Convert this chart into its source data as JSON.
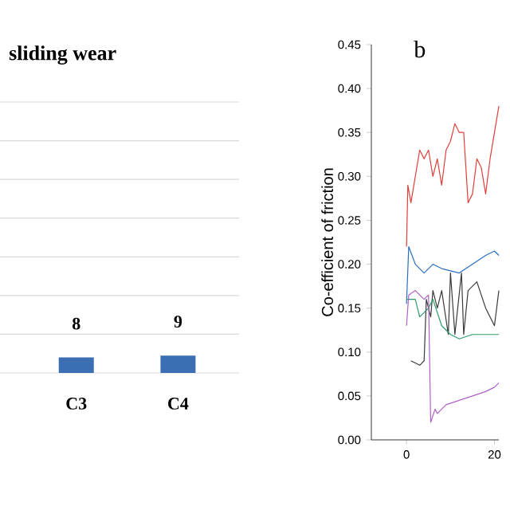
{
  "chart_data": [
    {
      "type": "bar",
      "title": "sliding wear",
      "categories": [
        "C3",
        "C4"
      ],
      "values": [
        8,
        9
      ],
      "color": "#3c6eb4",
      "data_labels": true,
      "ylim": [
        0,
        140
      ],
      "yticks": [
        {
          "value": 0,
          "label": null
        },
        {
          "value": 20,
          "label": null
        },
        {
          "value": 40,
          "label": null
        },
        {
          "value": 60,
          "label": null
        },
        {
          "value": 80,
          "label": null
        },
        {
          "value": 100,
          "label": null
        },
        {
          "value": 120,
          "label": null
        },
        {
          "value": 140,
          "label": null
        }
      ],
      "grid": "y",
      "tick_labels": "x"
    },
    {
      "type": "line",
      "title": "b",
      "ylabel": "Co-efficient of friction",
      "xlim": [
        -8,
        21
      ],
      "xticks": [
        0,
        20
      ],
      "ylim": [
        0,
        0.45
      ],
      "yticks": [
        {
          "value": 0,
          "label": "0.00"
        },
        {
          "value": 0.05,
          "label": "0.05"
        },
        {
          "value": 0.1,
          "label": "0.10"
        },
        {
          "value": 0.15,
          "label": "0.15"
        },
        {
          "value": 0.2,
          "label": "0.20"
        },
        {
          "value": 0.25,
          "label": "0.25"
        },
        {
          "value": 0.3,
          "label": "0.30"
        },
        {
          "value": 0.35,
          "label": "0.35"
        },
        {
          "value": 0.4,
          "label": "0.40"
        },
        {
          "value": 0.45,
          "label": "0.45"
        }
      ],
      "grid": false,
      "marker": "none",
      "line_style": "solid",
      "series": [
        {
          "color": "#e0403a",
          "x": [
            0,
            0.3,
            1,
            2,
            3,
            4,
            5,
            6,
            7,
            8,
            9,
            10,
            11,
            12,
            13,
            14,
            15,
            16,
            17,
            18,
            19,
            20,
            21
          ],
          "values": [
            0.22,
            0.29,
            0.27,
            0.3,
            0.33,
            0.32,
            0.33,
            0.3,
            0.32,
            0.29,
            0.33,
            0.34,
            0.36,
            0.35,
            0.35,
            0.27,
            0.28,
            0.32,
            0.31,
            0.28,
            0.32,
            0.35,
            0.38
          ]
        },
        {
          "color": "#2a6fbf",
          "x": [
            0,
            0.5,
            2,
            4,
            6,
            8,
            12,
            15,
            18,
            20,
            21
          ],
          "values": [
            0.155,
            0.22,
            0.2,
            0.19,
            0.2,
            0.195,
            0.19,
            0.2,
            0.21,
            0.215,
            0.21
          ]
        },
        {
          "color": "#3a3a3a",
          "x": [
            1,
            3,
            4,
            4.5,
            5.5,
            6,
            7,
            8,
            9.5,
            10,
            11,
            12.5,
            13,
            14,
            16,
            18,
            20,
            21
          ],
          "values": [
            0.09,
            0.085,
            0.09,
            0.16,
            0.14,
            0.17,
            0.15,
            0.17,
            0.12,
            0.19,
            0.12,
            0.19,
            0.12,
            0.17,
            0.18,
            0.15,
            0.13,
            0.17
          ]
        },
        {
          "color": "#2e9a6a",
          "x": [
            0,
            2,
            3,
            5,
            6,
            8,
            10,
            12,
            15,
            18,
            21
          ],
          "values": [
            0.16,
            0.16,
            0.14,
            0.15,
            0.16,
            0.13,
            0.12,
            0.115,
            0.12,
            0.12,
            0.12
          ]
        },
        {
          "color": "#b060c8",
          "x": [
            0,
            0.5,
            2,
            4,
            5,
            5.5,
            6.5,
            7,
            9,
            12,
            15,
            18,
            20,
            21
          ],
          "values": [
            0.13,
            0.165,
            0.17,
            0.16,
            0.165,
            0.02,
            0.035,
            0.03,
            0.04,
            0.045,
            0.05,
            0.055,
            0.06,
            0.065
          ]
        }
      ]
    }
  ]
}
